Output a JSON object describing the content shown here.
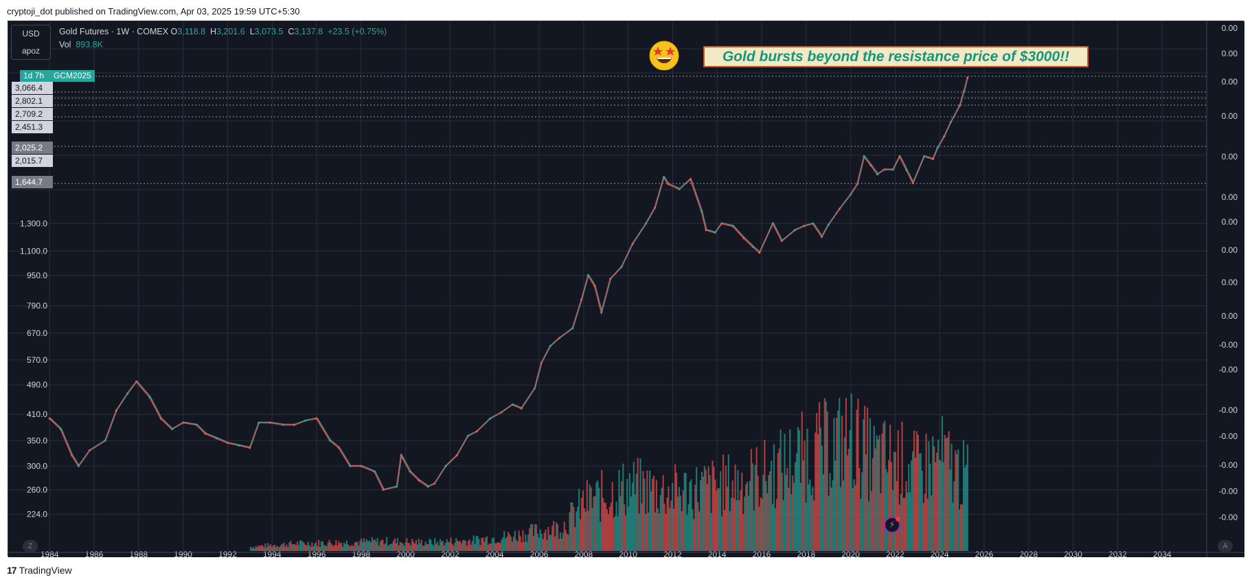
{
  "caption": "cryptoji_dot published on TradingView.com, Apr 03, 2025 19:59 UTC+5:30",
  "footer": {
    "brand": "TradingView",
    "logo_mark": "17"
  },
  "symbol_box": {
    "currency": "USD",
    "unit": "apoz"
  },
  "legend": {
    "name": "Gold Futures · 1W · COMEX",
    "open_key": "O",
    "open": "3,118.8",
    "high_key": "H",
    "high": "3,201.6",
    "low_key": "L",
    "low": "3,073.5",
    "close_key": "C",
    "close": "3,137.8",
    "change": "+23.5 (+0.75%)",
    "vol_key": "Vol",
    "vol": "893.8K"
  },
  "symbol_tag": {
    "countdown": "1d 7h",
    "ticker": "GCM2025"
  },
  "level_tags": [
    "3,066.4",
    "2,802.1",
    "2,709.2",
    "2,451.3",
    "2,025.2",
    "2,015.7",
    "1,644.7"
  ],
  "annotation": "Gold bursts beyond the resistance price of $3000!!",
  "buttons": {
    "z": "Z",
    "a": "A",
    "flash_icon": "lightning-icon",
    "emoji_icon": "star-struck-emoji-icon"
  },
  "colors": {
    "background": "#131722",
    "grid": "#2a2e39",
    "up": "#26a69a",
    "down": "#ef5350",
    "axis_text": "#d1d4dc",
    "annotation_bg": "#f3e9c4",
    "annotation_border": "#d4541c",
    "annotation_text": "#16967f"
  },
  "chart_data": {
    "type": "line",
    "title": "Gold Futures · 1W · COMEX",
    "scale": "log",
    "ylim": [
      200,
      3300
    ],
    "xlim": [
      1983.9,
      2036.0
    ],
    "grid": true,
    "x_ticks": [
      "1984",
      "1986",
      "1988",
      "1990",
      "1992",
      "1994",
      "1996",
      "1998",
      "2000",
      "2002",
      "2004",
      "2006",
      "2008",
      "2010",
      "2012",
      "2014",
      "2016",
      "2018",
      "2020",
      "2022",
      "2024",
      "2026",
      "2028",
      "2030",
      "2032",
      "2034"
    ],
    "y_ticks": [
      "1,300.0",
      "1,100.0",
      "950.0",
      "790.0",
      "670.0",
      "570.0",
      "490.0",
      "410.0",
      "350.0",
      "300.0",
      "260.0",
      "224.0"
    ],
    "y_tick_values": [
      1300,
      1100,
      950,
      790,
      670,
      570,
      490,
      410,
      350,
      300,
      260,
      224
    ],
    "right_axis_ticks": [
      "0.00",
      "0.00",
      "0.00",
      "0.00",
      "0.00",
      "0.00",
      "0.00",
      "0.00",
      "0.00",
      "0.00",
      "-0.00",
      "-0.00",
      "-0.00",
      "-0.00",
      "-0.00",
      "-0.00",
      "-0.00",
      "-0.00",
      "-0.00"
    ],
    "series": [
      {
        "name": "Gold Futures",
        "x": [
          1984.0,
          1984.5,
          1985.0,
          1985.3,
          1985.8,
          1986.5,
          1987.0,
          1987.5,
          1987.9,
          1988.5,
          1989.0,
          1989.5,
          1990.0,
          1990.6,
          1991.0,
          1991.5,
          1992.0,
          1992.5,
          1993.0,
          1993.4,
          1993.9,
          1994.5,
          1995.0,
          1995.5,
          1996.0,
          1996.6,
          1997.0,
          1997.5,
          1998.0,
          1998.6,
          1999.0,
          1999.6,
          1999.8,
          2000.2,
          2000.6,
          2001.0,
          2001.3,
          2001.8,
          2002.3,
          2002.8,
          2003.2,
          2003.8,
          2004.3,
          2004.8,
          2005.2,
          2005.8,
          2006.1,
          2006.5,
          2006.9,
          2007.5,
          2007.9,
          2008.2,
          2008.5,
          2008.8,
          2009.2,
          2009.7,
          2010.2,
          2010.8,
          2011.2,
          2011.6,
          2011.8,
          2012.3,
          2012.8,
          2013.3,
          2013.5,
          2013.9,
          2014.2,
          2014.7,
          2015.2,
          2015.6,
          2015.9,
          2016.5,
          2016.9,
          2017.5,
          2017.9,
          2018.3,
          2018.7,
          2019.0,
          2019.5,
          2020.0,
          2020.3,
          2020.6,
          2020.9,
          2021.2,
          2021.5,
          2021.9,
          2022.2,
          2022.5,
          2022.8,
          2023.3,
          2023.7,
          2023.9,
          2024.2,
          2024.5,
          2024.9,
          2025.1,
          2025.25
        ],
        "values": [
          400,
          375,
          320,
          300,
          330,
          350,
          420,
          465,
          500,
          455,
          400,
          375,
          390,
          385,
          365,
          355,
          345,
          340,
          335,
          390,
          390,
          385,
          385,
          395,
          400,
          350,
          335,
          300,
          300,
          290,
          260,
          265,
          320,
          290,
          275,
          265,
          270,
          300,
          320,
          360,
          370,
          400,
          415,
          435,
          425,
          480,
          560,
          620,
          650,
          690,
          820,
          950,
          890,
          760,
          930,
          1000,
          1150,
          1300,
          1430,
          1720,
          1650,
          1600,
          1700,
          1400,
          1250,
          1230,
          1300,
          1280,
          1190,
          1130,
          1090,
          1300,
          1170,
          1250,
          1280,
          1300,
          1200,
          1290,
          1420,
          1550,
          1650,
          1950,
          1850,
          1750,
          1800,
          1800,
          1950,
          1800,
          1660,
          1950,
          1920,
          2050,
          2200,
          2400,
          2650,
          2900,
          3138
        ]
      },
      {
        "name": "Vol",
        "x": [
          1984,
          1993,
          1995,
          1997,
          1999,
          2001,
          2003,
          2005,
          2007,
          2008,
          2010,
          2012,
          2014,
          2016,
          2018,
          2020,
          2021,
          2022,
          2023,
          2024,
          2025
        ],
        "values": [
          0,
          8,
          14,
          16,
          18,
          16,
          20,
          30,
          45,
          90,
          120,
          110,
          120,
          140,
          180,
          210,
          170,
          170,
          150,
          175,
          140
        ]
      }
    ]
  }
}
